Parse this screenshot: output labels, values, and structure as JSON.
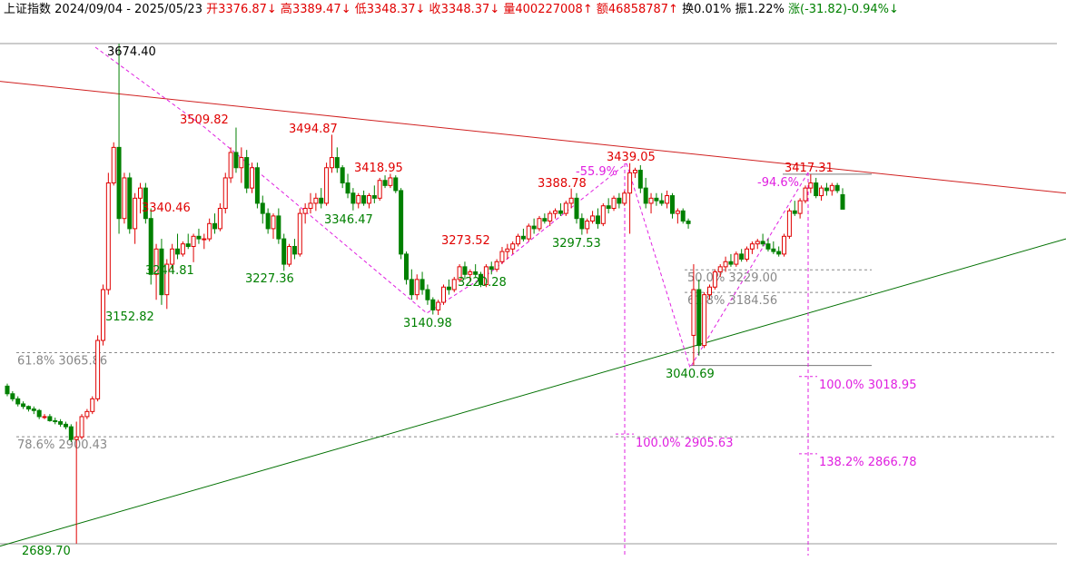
{
  "header": {
    "name": "上证指数",
    "range": "2024/09/04 - 2025/05/23",
    "open_label": "开",
    "open": "3376.87↓",
    "high_label": "高",
    "high": "3389.47↓",
    "low_label": "低",
    "low": "3348.37↓",
    "close_label": "收",
    "close": "3348.37↓",
    "volume_label": "量",
    "volume": "400227008↑",
    "amount_label": "额",
    "amount": "46858787↑",
    "turnover": "换0.01%",
    "amplitude": "振1.22%",
    "change_label": "涨",
    "change": "(-31.82)-0.94%↓"
  },
  "colors": {
    "up": "#e00000",
    "down": "#008000",
    "trend_upper": "#d02020",
    "trend_lower": "#007000",
    "fib": "#e020e0",
    "level": "#888888"
  },
  "chart_data": {
    "type": "candlestick",
    "ylim": [
      2680,
      3700
    ],
    "candles": [
      [
        3000,
        3005,
        2980,
        2985
      ],
      [
        2985,
        2990,
        2970,
        2975
      ],
      [
        2975,
        2980,
        2960,
        2965
      ],
      [
        2965,
        2970,
        2955,
        2960
      ],
      [
        2960,
        2962,
        2950,
        2955
      ],
      [
        2955,
        2960,
        2945,
        2952
      ],
      [
        2952,
        2955,
        2935,
        2940
      ],
      [
        2940,
        2945,
        2935,
        2940
      ],
      [
        2940,
        2945,
        2930,
        2932
      ],
      [
        2932,
        2938,
        2925,
        2930
      ],
      [
        2930,
        2935,
        2920,
        2925
      ],
      [
        2925,
        2930,
        2915,
        2920
      ],
      [
        2920,
        2925,
        2890,
        2895
      ],
      [
        2895,
        2930,
        2690,
        2900
      ],
      [
        2900,
        2945,
        2895,
        2940
      ],
      [
        2940,
        2955,
        2935,
        2950
      ],
      [
        2950,
        2980,
        2945,
        2975
      ],
      [
        2975,
        3100,
        2970,
        3090
      ],
      [
        3090,
        3200,
        3080,
        3190
      ],
      [
        3190,
        3420,
        3180,
        3400
      ],
      [
        3400,
        3480,
        3395,
        3470
      ],
      [
        3470,
        3674,
        3300,
        3330
      ],
      [
        3330,
        3420,
        3320,
        3410
      ],
      [
        3410,
        3420,
        3300,
        3310
      ],
      [
        3310,
        3380,
        3280,
        3370
      ],
      [
        3370,
        3400,
        3340,
        3390
      ],
      [
        3390,
        3400,
        3320,
        3330
      ],
      [
        3330,
        3350,
        3200,
        3220
      ],
      [
        3220,
        3280,
        3170,
        3270
      ],
      [
        3270,
        3290,
        3160,
        3180
      ],
      [
        3180,
        3250,
        3152,
        3240
      ],
      [
        3240,
        3280,
        3230,
        3270
      ],
      [
        3270,
        3300,
        3250,
        3260
      ],
      [
        3260,
        3285,
        3255,
        3280
      ],
      [
        3280,
        3300,
        3270,
        3275
      ],
      [
        3275,
        3300,
        3244,
        3295
      ],
      [
        3295,
        3310,
        3280,
        3290
      ],
      [
        3290,
        3300,
        3270,
        3290
      ],
      [
        3290,
        3330,
        3285,
        3320
      ],
      [
        3320,
        3340,
        3300,
        3310
      ],
      [
        3310,
        3360,
        3305,
        3350
      ],
      [
        3350,
        3420,
        3340,
        3410
      ],
      [
        3410,
        3470,
        3400,
        3460
      ],
      [
        3460,
        3509,
        3420,
        3430
      ],
      [
        3430,
        3470,
        3400,
        3450
      ],
      [
        3450,
        3465,
        3380,
        3390
      ],
      [
        3390,
        3440,
        3380,
        3430
      ],
      [
        3430,
        3440,
        3350,
        3360
      ],
      [
        3360,
        3375,
        3320,
        3340
      ],
      [
        3340,
        3350,
        3300,
        3310
      ],
      [
        3310,
        3340,
        3290,
        3335
      ],
      [
        3335,
        3350,
        3280,
        3290
      ],
      [
        3290,
        3300,
        3227,
        3240
      ],
      [
        3240,
        3280,
        3235,
        3275
      ],
      [
        3275,
        3290,
        3250,
        3260
      ],
      [
        3260,
        3350,
        3255,
        3340
      ],
      [
        3340,
        3360,
        3320,
        3350
      ],
      [
        3350,
        3380,
        3340,
        3360
      ],
      [
        3360,
        3380,
        3345,
        3370
      ],
      [
        3370,
        3390,
        3350,
        3360
      ],
      [
        3360,
        3440,
        3355,
        3430
      ],
      [
        3430,
        3495,
        3420,
        3450
      ],
      [
        3450,
        3470,
        3420,
        3430
      ],
      [
        3430,
        3435,
        3390,
        3400
      ],
      [
        3400,
        3418,
        3370,
        3380
      ],
      [
        3380,
        3390,
        3346,
        3360
      ],
      [
        3360,
        3380,
        3350,
        3375
      ],
      [
        3375,
        3385,
        3355,
        3360
      ],
      [
        3360,
        3380,
        3350,
        3375
      ],
      [
        3375,
        3395,
        3360,
        3370
      ],
      [
        3370,
        3410,
        3365,
        3405
      ],
      [
        3405,
        3415,
        3390,
        3395
      ],
      [
        3395,
        3418,
        3390,
        3410
      ],
      [
        3410,
        3415,
        3380,
        3385
      ],
      [
        3385,
        3390,
        3250,
        3260
      ],
      [
        3260,
        3265,
        3200,
        3210
      ],
      [
        3210,
        3230,
        3170,
        3180
      ],
      [
        3180,
        3220,
        3170,
        3210
      ],
      [
        3210,
        3225,
        3180,
        3190
      ],
      [
        3190,
        3200,
        3160,
        3170
      ],
      [
        3170,
        3175,
        3141,
        3150
      ],
      [
        3150,
        3170,
        3140,
        3165
      ],
      [
        3165,
        3200,
        3160,
        3195
      ],
      [
        3195,
        3210,
        3180,
        3190
      ],
      [
        3190,
        3215,
        3185,
        3210
      ],
      [
        3210,
        3240,
        3205,
        3235
      ],
      [
        3235,
        3245,
        3210,
        3220
      ],
      [
        3220,
        3230,
        3205,
        3225
      ],
      [
        3225,
        3240,
        3215,
        3220
      ],
      [
        3220,
        3225,
        3195,
        3200
      ],
      [
        3200,
        3240,
        3195,
        3235
      ],
      [
        3235,
        3245,
        3220,
        3230
      ],
      [
        3230,
        3250,
        3225,
        3245
      ],
      [
        3245,
        3274,
        3240,
        3265
      ],
      [
        3265,
        3280,
        3250,
        3270
      ],
      [
        3270,
        3285,
        3260,
        3280
      ],
      [
        3280,
        3300,
        3275,
        3295
      ],
      [
        3295,
        3310,
        3285,
        3290
      ],
      [
        3290,
        3320,
        3285,
        3315
      ],
      [
        3315,
        3330,
        3300,
        3310
      ],
      [
        3310,
        3335,
        3305,
        3330
      ],
      [
        3330,
        3340,
        3320,
        3325
      ],
      [
        3325,
        3345,
        3315,
        3340
      ],
      [
        3340,
        3350,
        3330,
        3345
      ],
      [
        3345,
        3360,
        3335,
        3340
      ],
      [
        3340,
        3365,
        3335,
        3360
      ],
      [
        3360,
        3389,
        3350,
        3370
      ],
      [
        3370,
        3380,
        3320,
        3330
      ],
      [
        3330,
        3340,
        3298,
        3310
      ],
      [
        3310,
        3330,
        3300,
        3325
      ],
      [
        3325,
        3345,
        3320,
        3335
      ],
      [
        3335,
        3350,
        3310,
        3320
      ],
      [
        3320,
        3360,
        3315,
        3355
      ],
      [
        3355,
        3370,
        3340,
        3350
      ],
      [
        3350,
        3375,
        3345,
        3370
      ],
      [
        3370,
        3380,
        3350,
        3360
      ],
      [
        3360,
        3385,
        3355,
        3380
      ],
      [
        3380,
        3439,
        3300,
        3420
      ],
      [
        3420,
        3430,
        3410,
        3425
      ],
      [
        3425,
        3435,
        3380,
        3390
      ],
      [
        3390,
        3410,
        3350,
        3360
      ],
      [
        3360,
        3380,
        3340,
        3370
      ],
      [
        3370,
        3380,
        3355,
        3365
      ],
      [
        3365,
        3380,
        3355,
        3360
      ],
      [
        3360,
        3385,
        3350,
        3375
      ],
      [
        3375,
        3380,
        3330,
        3340
      ],
      [
        3340,
        3350,
        3320,
        3345
      ],
      [
        3345,
        3350,
        3320,
        3325
      ],
      [
        3325,
        3330,
        3310,
        3320
      ],
      [
        3100,
        3240,
        3041,
        3190
      ],
      [
        3190,
        3210,
        3060,
        3080
      ],
      [
        3080,
        3185,
        3075,
        3180
      ],
      [
        3180,
        3200,
        3170,
        3195
      ],
      [
        3195,
        3230,
        3190,
        3225
      ],
      [
        3225,
        3240,
        3215,
        3235
      ],
      [
        3235,
        3255,
        3225,
        3245
      ],
      [
        3245,
        3260,
        3235,
        3240
      ],
      [
        3240,
        3265,
        3235,
        3260
      ],
      [
        3260,
        3270,
        3245,
        3250
      ],
      [
        3250,
        3275,
        3245,
        3270
      ],
      [
        3270,
        3285,
        3260,
        3280
      ],
      [
        3280,
        3290,
        3270,
        3285
      ],
      [
        3285,
        3300,
        3275,
        3280
      ],
      [
        3280,
        3290,
        3265,
        3270
      ],
      [
        3270,
        3285,
        3260,
        3265
      ],
      [
        3265,
        3275,
        3255,
        3260
      ],
      [
        3260,
        3300,
        3255,
        3295
      ],
      [
        3295,
        3350,
        3290,
        3345
      ],
      [
        3345,
        3365,
        3335,
        3340
      ],
      [
        3340,
        3370,
        3330,
        3365
      ],
      [
        3365,
        3395,
        3360,
        3390
      ],
      [
        3390,
        3417,
        3380,
        3400
      ],
      [
        3400,
        3410,
        3370,
        3375
      ],
      [
        3375,
        3395,
        3365,
        3390
      ],
      [
        3390,
        3400,
        3375,
        3385
      ],
      [
        3385,
        3400,
        3375,
        3395
      ],
      [
        3395,
        3400,
        3380,
        3385
      ],
      [
        3376.87,
        3389.47,
        3348.37,
        3348.37
      ]
    ],
    "upper_trendline": {
      "from": [
        0,
        3600
      ],
      "to": [
        1,
        3380
      ]
    },
    "lower_trendline": {
      "from": [
        0,
        2685
      ],
      "to": [
        1,
        3290
      ]
    },
    "horizontal_levels": [
      {
        "label": "61.8% 3065.86",
        "value": 3065.86
      },
      {
        "label": "78.6% 2900.43",
        "value": 2900.43
      },
      {
        "label": "50.0% 3229.00",
        "value": 3229.0
      },
      {
        "label": "61.8% 3184.56",
        "value": 3184.56
      }
    ],
    "price_labels": [
      {
        "text": "3674.40",
        "value": 3674.4,
        "kind": "high"
      },
      {
        "text": "3509.82",
        "value": 3509.82,
        "kind": "high"
      },
      {
        "text": "3494.87",
        "value": 3494.87,
        "kind": "high"
      },
      {
        "text": "3418.95",
        "value": 3418.95,
        "kind": "high"
      },
      {
        "text": "3340.46",
        "value": 3340.46,
        "kind": "high"
      },
      {
        "text": "3273.52",
        "value": 3273.52,
        "kind": "high"
      },
      {
        "text": "3388.78",
        "value": 3388.78,
        "kind": "high"
      },
      {
        "text": "3439.05",
        "value": 3439.05,
        "kind": "high"
      },
      {
        "text": "3417.31",
        "value": 3417.31,
        "kind": "high"
      },
      {
        "text": "3244.81",
        "value": 3244.81,
        "kind": "low"
      },
      {
        "text": "3152.82",
        "value": 3152.82,
        "kind": "low"
      },
      {
        "text": "3227.36",
        "value": 3227.36,
        "kind": "low"
      },
      {
        "text": "3346.47",
        "value": 3346.47,
        "kind": "low"
      },
      {
        "text": "3140.98",
        "value": 3140.98,
        "kind": "low"
      },
      {
        "text": "3220.28",
        "value": 3220.28,
        "kind": "low"
      },
      {
        "text": "3297.53",
        "value": 3297.53,
        "kind": "low"
      },
      {
        "text": "3040.69",
        "value": 3040.69,
        "kind": "low"
      },
      {
        "text": "2689.70",
        "value": 2689.7,
        "kind": "low"
      }
    ],
    "fib_labels": [
      {
        "text": "-55.9%"
      },
      {
        "text": "-94.6%"
      },
      {
        "text": "100.0% 2905.63"
      },
      {
        "text": "100.0% 3018.95"
      },
      {
        "text": "138.2% 2866.78"
      }
    ]
  }
}
